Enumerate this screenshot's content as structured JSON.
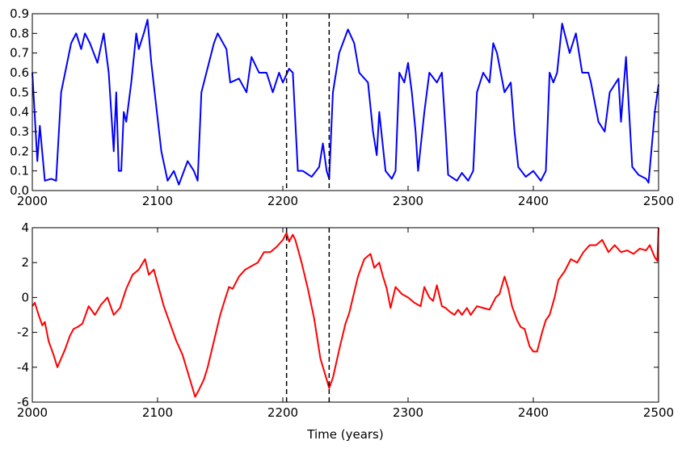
{
  "chart_data": [
    {
      "type": "line",
      "color": "#0000ff",
      "x": [
        2000,
        2004,
        2006,
        2010,
        2015,
        2019,
        2023,
        2031,
        2035,
        2039,
        2042,
        2046,
        2052,
        2057,
        2061,
        2065,
        2067,
        2069,
        2071,
        2073,
        2075,
        2079,
        2083,
        2085,
        2089,
        2092,
        2095,
        2103,
        2108,
        2113,
        2117,
        2124,
        2129,
        2132,
        2135,
        2141,
        2145,
        2148,
        2155,
        2158,
        2165,
        2171,
        2175,
        2181,
        2187,
        2192,
        2197,
        2200,
        2205,
        2208,
        2212,
        2216,
        2223,
        2229,
        2232,
        2235,
        2237,
        2240,
        2245,
        2252,
        2257,
        2261,
        2268,
        2272,
        2275,
        2277,
        2282,
        2287,
        2290,
        2293,
        2297,
        2300,
        2303,
        2306,
        2308,
        2313,
        2317,
        2323,
        2327,
        2330,
        2332,
        2339,
        2343,
        2348,
        2352,
        2355,
        2360,
        2365,
        2368,
        2371,
        2377,
        2382,
        2385,
        2388,
        2394,
        2400,
        2406,
        2410,
        2413,
        2416,
        2419,
        2423,
        2429,
        2434,
        2439,
        2444,
        2446,
        2452,
        2457,
        2461,
        2468,
        2470,
        2474,
        2479,
        2484,
        2490,
        2492,
        2497,
        2500
      ],
      "values": [
        0.6,
        0.15,
        0.33,
        0.05,
        0.06,
        0.05,
        0.5,
        0.75,
        0.8,
        0.72,
        0.8,
        0.75,
        0.65,
        0.8,
        0.6,
        0.2,
        0.5,
        0.1,
        0.1,
        0.4,
        0.35,
        0.55,
        0.8,
        0.72,
        0.8,
        0.87,
        0.65,
        0.2,
        0.05,
        0.1,
        0.03,
        0.15,
        0.1,
        0.05,
        0.5,
        0.65,
        0.75,
        0.8,
        0.72,
        0.55,
        0.57,
        0.5,
        0.68,
        0.6,
        0.6,
        0.5,
        0.6,
        0.55,
        0.62,
        0.6,
        0.1,
        0.1,
        0.07,
        0.12,
        0.24,
        0.1,
        0.06,
        0.5,
        0.7,
        0.82,
        0.75,
        0.6,
        0.55,
        0.3,
        0.18,
        0.4,
        0.1,
        0.06,
        0.1,
        0.6,
        0.55,
        0.65,
        0.5,
        0.3,
        0.1,
        0.4,
        0.6,
        0.55,
        0.6,
        0.3,
        0.08,
        0.05,
        0.09,
        0.05,
        0.1,
        0.5,
        0.6,
        0.55,
        0.75,
        0.7,
        0.5,
        0.55,
        0.3,
        0.12,
        0.07,
        0.1,
        0.05,
        0.1,
        0.6,
        0.55,
        0.6,
        0.85,
        0.7,
        0.8,
        0.6,
        0.6,
        0.55,
        0.35,
        0.3,
        0.5,
        0.57,
        0.35,
        0.68,
        0.12,
        0.08,
        0.06,
        0.04,
        0.4,
        0.54
      ],
      "xlim": [
        2000,
        2500
      ],
      "xticks": [
        2000,
        2100,
        2200,
        2300,
        2400,
        2500
      ],
      "ylim": [
        0,
        0.9
      ],
      "yticks": [
        {
          "value": 0,
          "label": "0.0"
        },
        0.1,
        0.2,
        0.3,
        0.4,
        0.5,
        0.6,
        0.7,
        0.8,
        0.9
      ],
      "vlines": [
        2203,
        2237
      ]
    },
    {
      "type": "line",
      "color": "#ff0000",
      "xlabel": "Time (years)",
      "x": [
        2000,
        2002,
        2005,
        2008,
        2010,
        2013,
        2017,
        2020,
        2023,
        2026,
        2030,
        2033,
        2036,
        2040,
        2045,
        2050,
        2055,
        2060,
        2065,
        2070,
        2075,
        2080,
        2085,
        2090,
        2093,
        2097,
        2100,
        2105,
        2110,
        2115,
        2120,
        2125,
        2130,
        2133,
        2137,
        2140,
        2145,
        2150,
        2153,
        2157,
        2160,
        2165,
        2170,
        2175,
        2180,
        2185,
        2190,
        2195,
        2200,
        2203,
        2205,
        2208,
        2210,
        2215,
        2220,
        2225,
        2230,
        2235,
        2237,
        2240,
        2245,
        2250,
        2253,
        2256,
        2260,
        2265,
        2270,
        2273,
        2277,
        2280,
        2283,
        2286,
        2290,
        2295,
        2300,
        2305,
        2310,
        2313,
        2317,
        2320,
        2323,
        2327,
        2330,
        2333,
        2337,
        2340,
        2343,
        2347,
        2350,
        2355,
        2360,
        2365,
        2370,
        2373,
        2377,
        2380,
        2383,
        2387,
        2390,
        2393,
        2397,
        2400,
        2403,
        2407,
        2410,
        2413,
        2417,
        2420,
        2425,
        2430,
        2435,
        2440,
        2445,
        2450,
        2455,
        2460,
        2465,
        2470,
        2475,
        2480,
        2485,
        2490,
        2493,
        2497,
        2499,
        2500
      ],
      "values": [
        -0.5,
        -0.3,
        -1.0,
        -1.6,
        -1.4,
        -2.5,
        -3.3,
        -4.0,
        -3.5,
        -3.0,
        -2.2,
        -1.8,
        -1.7,
        -1.5,
        -0.5,
        -1.0,
        -0.4,
        0.0,
        -1.0,
        -0.6,
        0.5,
        1.3,
        1.6,
        2.2,
        1.3,
        1.6,
        0.8,
        -0.5,
        -1.5,
        -2.5,
        -3.3,
        -4.5,
        -5.7,
        -5.3,
        -4.7,
        -4.0,
        -2.5,
        -1.0,
        -0.3,
        0.6,
        0.5,
        1.2,
        1.6,
        1.8,
        2.0,
        2.6,
        2.6,
        2.9,
        3.3,
        3.7,
        3.2,
        3.6,
        3.3,
        2.0,
        0.5,
        -1.2,
        -3.5,
        -4.7,
        -5.2,
        -4.6,
        -3.0,
        -1.5,
        -0.9,
        0.0,
        1.2,
        2.2,
        2.5,
        1.7,
        2.0,
        1.2,
        0.5,
        -0.6,
        0.6,
        0.2,
        0.0,
        -0.3,
        -0.5,
        0.6,
        0.0,
        -0.2,
        0.7,
        -0.5,
        -0.6,
        -0.8,
        -1.0,
        -0.7,
        -1.0,
        -0.6,
        -1.0,
        -0.5,
        -0.6,
        -0.7,
        0.0,
        0.2,
        1.2,
        0.5,
        -0.5,
        -1.3,
        -1.7,
        -1.8,
        -2.8,
        -3.1,
        -3.1,
        -2.0,
        -1.3,
        -1.0,
        0.0,
        1.0,
        1.5,
        2.2,
        2.0,
        2.6,
        3.0,
        3.0,
        3.3,
        2.6,
        3.0,
        2.6,
        2.7,
        2.5,
        2.8,
        2.7,
        3.0,
        2.3,
        2.1,
        4.0
      ],
      "xlim": [
        2000,
        2500
      ],
      "xticks": [
        2000,
        2100,
        2200,
        2300,
        2400,
        2500
      ],
      "ylim": [
        -6,
        4
      ],
      "yticks": [
        -6,
        -4,
        -2,
        0,
        2,
        4
      ],
      "vlines": [
        2203,
        2237
      ]
    }
  ]
}
